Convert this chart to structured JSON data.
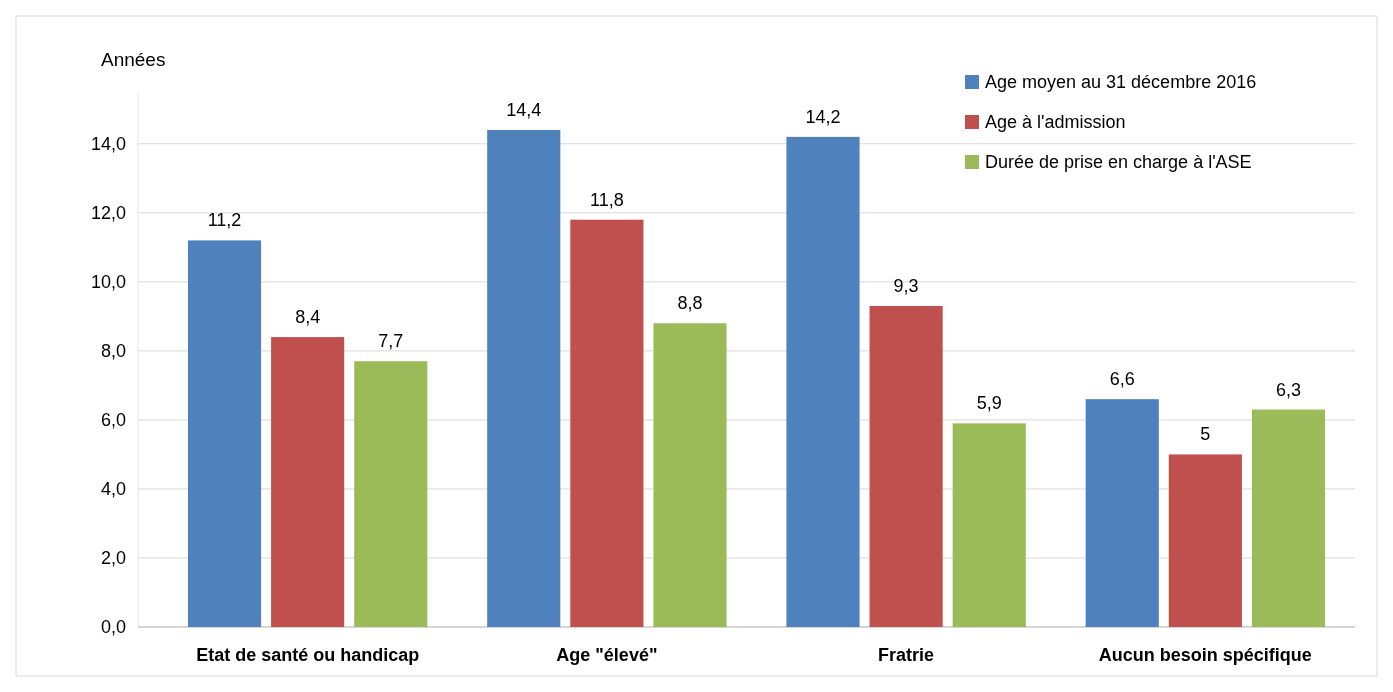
{
  "chart_data": {
    "type": "bar",
    "ylabel": "Années",
    "categories": [
      "Etat de santé ou handicap",
      "Age \"élevé\"",
      "Fratrie",
      "Aucun besoin spécifique"
    ],
    "series": [
      {
        "name": "Age moyen au 31 décembre 2016",
        "color": "#4f81bd",
        "values": [
          11.2,
          14.4,
          14.2,
          6.6
        ],
        "value_labels": [
          "11,2",
          "14,4",
          "14,2",
          "6,6"
        ]
      },
      {
        "name": "Age à l'admission",
        "color": "#c0504d",
        "values": [
          8.4,
          11.8,
          9.3,
          5
        ],
        "value_labels": [
          "8,4",
          "11,8",
          "9,3",
          "5"
        ]
      },
      {
        "name": "Durée de prise en charge à l'ASE",
        "color": "#9bbb59",
        "values": [
          7.7,
          8.8,
          5.9,
          6.3
        ],
        "value_labels": [
          "7,7",
          "8,8",
          "5,9",
          "6,3"
        ]
      }
    ],
    "ylim": [
      0,
      15.5
    ],
    "yticks": [
      {
        "value": 0,
        "label": "0,0"
      },
      {
        "value": 2,
        "label": "2,0"
      },
      {
        "value": 4,
        "label": "4,0"
      },
      {
        "value": 6,
        "label": "6,0"
      },
      {
        "value": 8,
        "label": "8,0"
      },
      {
        "value": 10,
        "label": "10,0"
      },
      {
        "value": 12,
        "label": "12,0"
      },
      {
        "value": 14,
        "label": "14,0"
      }
    ],
    "grid": "y",
    "legend": "top right"
  }
}
